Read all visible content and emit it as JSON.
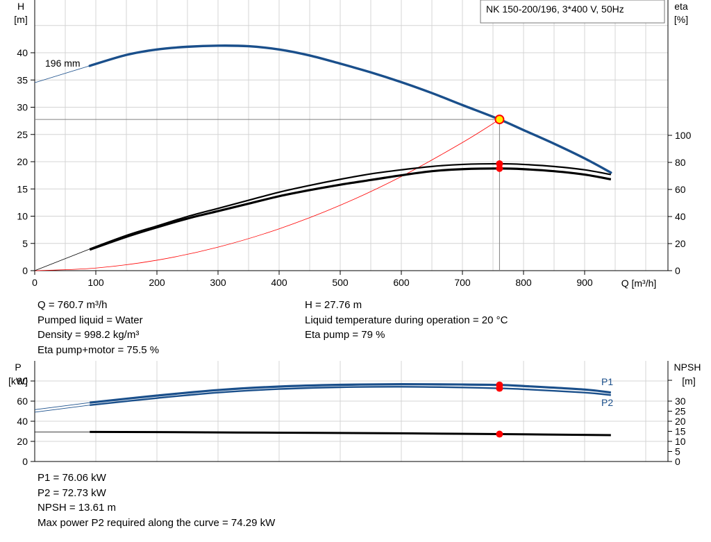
{
  "title_box": "NK 150-200/196, 3*400 V, 50Hz",
  "colors": {
    "head_curve": "#1a4f8b",
    "eta_curve": "#000000",
    "system_curve": "#ff0000",
    "grid": "#d4d4d4",
    "op_marker": "#ff0000",
    "op_marker_head_fill": "#ffee00",
    "p_label": "#1a4f8b"
  },
  "top_chart": {
    "y_label_line1": "H",
    "y_label_line2": "[m]",
    "y2_label_line1": "eta",
    "y2_label_line2": "[%]",
    "x_label": "Q [m³/h]",
    "curve_label": "196 mm",
    "x_ticks": [
      0,
      100,
      200,
      300,
      400,
      500,
      600,
      700,
      800,
      900
    ],
    "y_ticks": [
      0,
      5,
      10,
      15,
      20,
      25,
      30,
      35,
      40
    ],
    "y2_ticks": [
      0,
      20,
      40,
      60,
      80,
      100
    ]
  },
  "chart_data": [
    {
      "type": "line",
      "name": "H-Q",
      "xlabel": "Q [m³/h]",
      "ylabel": "H [m]",
      "y2label": "eta [%]",
      "xlim": [
        0,
        1000
      ],
      "ylim": [
        0,
        44
      ],
      "y2lim": [
        0,
        127
      ],
      "grid": true,
      "series": [
        {
          "name": "196 mm",
          "axis": "H",
          "x": [
            90,
            150,
            200,
            250,
            300,
            350,
            400,
            450,
            500,
            550,
            600,
            650,
            700,
            760.7,
            800,
            850,
            900,
            943
          ],
          "values": [
            37.6,
            39.6,
            40.6,
            41.1,
            41.3,
            41.2,
            40.6,
            39.5,
            38.0,
            36.4,
            34.6,
            32.6,
            30.4,
            27.76,
            25.8,
            23.3,
            20.6,
            18.0
          ]
        },
        {
          "name": "",
          "axis": "eta",
          "x": [
            90,
            150,
            200,
            250,
            300,
            350,
            400,
            450,
            500,
            550,
            600,
            650,
            700,
            760.7,
            800,
            850,
            900,
            943
          ],
          "values": [
            16,
            26,
            33,
            40,
            46,
            52,
            58,
            63,
            67.5,
            71.5,
            74.5,
            77,
            78.5,
            79,
            78.5,
            77,
            74.5,
            71
          ]
        },
        {
          "name": "",
          "axis": "eta",
          "x": [
            90,
            150,
            200,
            250,
            300,
            350,
            400,
            450,
            500,
            550,
            600,
            650,
            700,
            760.7,
            800,
            850,
            900,
            943
          ],
          "values": [
            15.5,
            25,
            32,
            38.5,
            44,
            49.5,
            55,
            59.5,
            63.5,
            67,
            70.5,
            73.5,
            75,
            75.5,
            75,
            73.5,
            71,
            67.5
          ]
        },
        {
          "name": "",
          "axis": "H",
          "x": [
            0,
            100,
            200,
            300,
            400,
            500,
            600,
            700,
            760.7
          ],
          "values": [
            0,
            0.48,
            1.92,
            4.32,
            7.68,
            12.0,
            17.28,
            23.52,
            27.76
          ]
        }
      ],
      "operating_point": {
        "q": 760.7,
        "h": 27.76,
        "eta_pump": 79,
        "eta_total": 75.5
      }
    },
    {
      "type": "line",
      "name": "P-Q",
      "ylabel": "P [kW]",
      "y2label": "NPSH [m]",
      "xlim": [
        0,
        1000
      ],
      "ylim": [
        0,
        95
      ],
      "y2lim": [
        0,
        49
      ],
      "grid": true,
      "series": [
        {
          "name": "P1",
          "axis": "P",
          "x": [
            90,
            200,
            300,
            400,
            500,
            600,
            700,
            760.7,
            800,
            900,
            943
          ],
          "values": [
            58.5,
            65.5,
            71,
            74.5,
            76.2,
            76.8,
            76.5,
            76.06,
            75,
            71.5,
            68.5
          ]
        },
        {
          "name": "P2",
          "axis": "P",
          "x": [
            90,
            200,
            300,
            400,
            500,
            600,
            700,
            760.7,
            800,
            900,
            943
          ],
          "values": [
            56,
            63,
            68.5,
            72,
            73.8,
            74.29,
            73.6,
            72.73,
            71.8,
            68.5,
            66
          ]
        },
        {
          "name": "",
          "axis": "NPSH",
          "x": [
            90,
            200,
            400,
            600,
            760.7,
            943
          ],
          "values": [
            14.7,
            14.6,
            14.3,
            14.0,
            13.61,
            13.1
          ]
        }
      ],
      "operating_point": {
        "q": 760.7,
        "p1": 76.06,
        "p2": 72.73,
        "npsh": 13.61
      }
    }
  ],
  "bottom_chart": {
    "y_label_line1": "P",
    "y_label_line2": "[kW]",
    "y2_label_line1": "NPSH",
    "y2_label_line2": "[m]",
    "y_ticks": [
      0,
      20,
      40,
      60,
      80
    ],
    "y2_ticks": [
      0,
      5,
      10,
      15,
      20,
      25,
      30
    ],
    "p1_label": "P1",
    "p2_label": "P2"
  },
  "info_top_left": [
    "Q = 760.7 m³/h",
    "Pumped liquid = Water",
    "Density = 998.2 kg/m³",
    "Eta pump+motor = 75.5 %"
  ],
  "info_top_right": [
    "H = 27.76 m",
    "Liquid temperature during operation = 20 °C",
    "Eta pump = 79 %"
  ],
  "info_bottom": [
    "P1 = 76.06 kW",
    "P2 = 72.73 kW",
    "NPSH = 13.61 m",
    "Max power P2 required along the curve = 74.29 kW"
  ]
}
